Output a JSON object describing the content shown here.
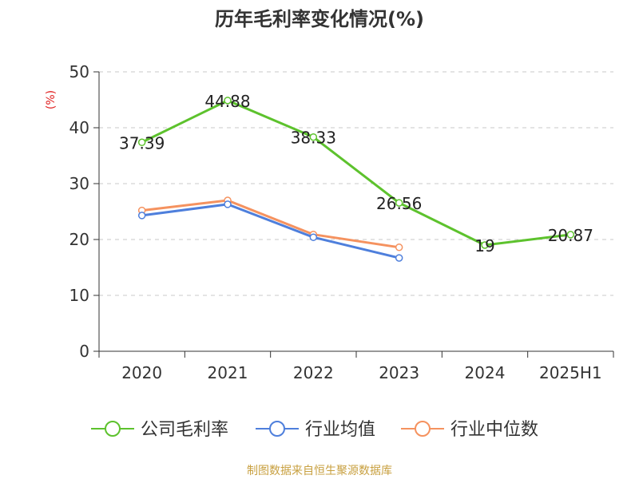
{
  "chart_data": {
    "type": "line",
    "title": "历年毛利率变化情况(%)",
    "ylabel": "(%)",
    "xlabel": "",
    "categories": [
      "2020",
      "2021",
      "2022",
      "2023",
      "2024",
      "2025H1"
    ],
    "ylim": [
      0,
      50
    ],
    "yticks": [
      0,
      10,
      20,
      30,
      40,
      50
    ],
    "grid": true,
    "legend_position": "bottom",
    "series": [
      {
        "name": "公司毛利率",
        "color": "#5dc22d",
        "values": [
          37.39,
          44.88,
          38.33,
          26.56,
          19,
          20.87
        ],
        "data_labels": [
          "37.39",
          "44.88",
          "38.33",
          "26.56",
          "19",
          "20.87"
        ]
      },
      {
        "name": "行业均值",
        "color": "#4e7fdc",
        "values": [
          24.3,
          26.3,
          20.4,
          16.7,
          null,
          null
        ]
      },
      {
        "name": "行业中位数",
        "color": "#f5925f",
        "values": [
          25.2,
          27.0,
          20.9,
          18.6,
          null,
          null
        ]
      }
    ]
  },
  "source_note": "制图数据来自恒生聚源数据库",
  "colors": {
    "axis": "#333333",
    "grid": "#c8c8c8",
    "ylabel": "#e02020",
    "source": "#c8a040"
  }
}
